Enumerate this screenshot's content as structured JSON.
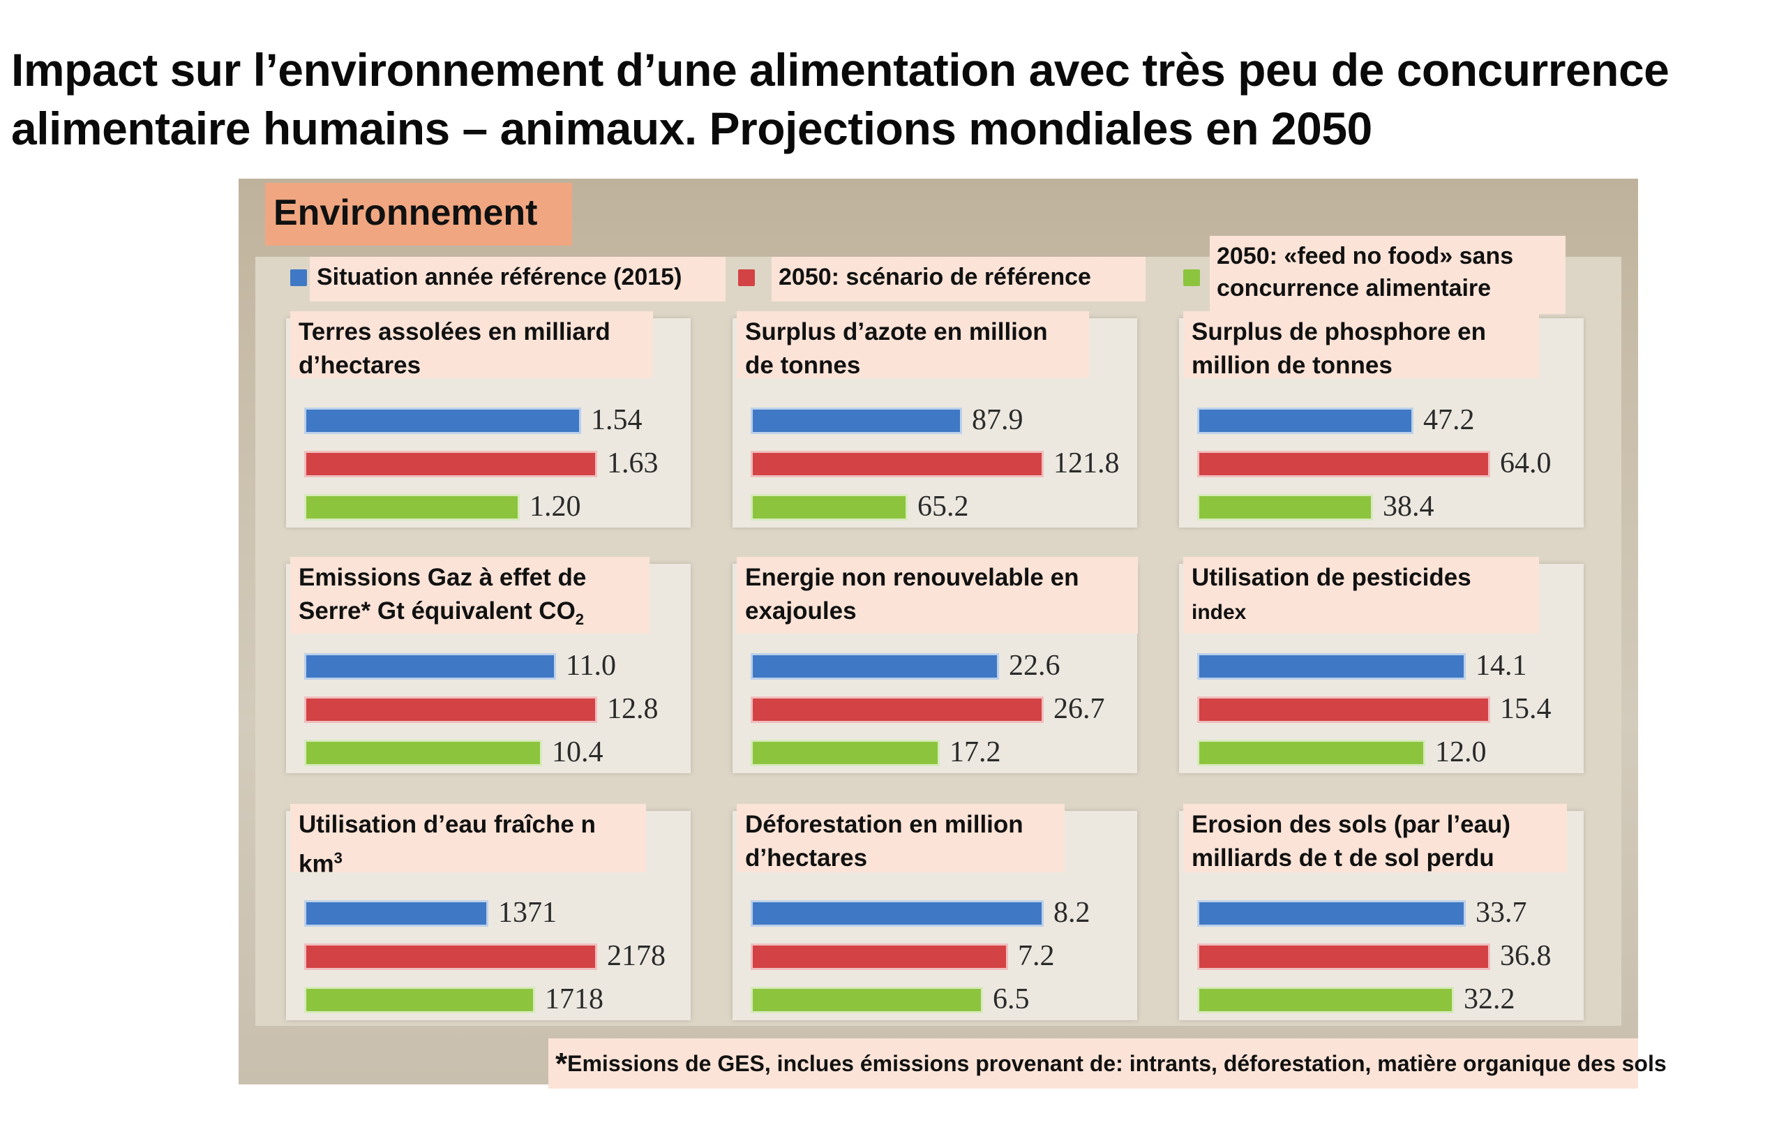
{
  "title": "Impact sur l’environnement d’une alimentation avec très peu de concurrence alimentaire humains – animaux. Projections mondiales en 2050",
  "section_label": "Environnement",
  "footnote": {
    "marker": "*",
    "text": "Emissions de GES, inclues émissions provenant de: intrants, déforestation, matière organique des sols"
  },
  "colors": {
    "ref2015": "#3f78c4",
    "ref2050": "#d34244",
    "feednofood": "#8cc43e"
  },
  "chart_data": {
    "type": "bar",
    "orientation": "horizontal",
    "title": "Environnement",
    "legend": {
      "placement": "top",
      "entries": [
        {
          "key": "ref2015",
          "label": "Situation année référence (2015)"
        },
        {
          "key": "ref2050",
          "label": "2050: scénario de référence"
        },
        {
          "key": "feednofood",
          "label": "2050: «feed no food» sans concurrence alimentaire"
        }
      ]
    },
    "series_names": [
      "Situation année référence (2015)",
      "2050: scénario de référence",
      "2050: «feed no food» sans concurrence alimentaire"
    ],
    "panels": [
      {
        "title": "Terres assolées en milliard d’hectares",
        "values": [
          1.54,
          1.63,
          1.2
        ],
        "labels": [
          "1.54",
          "1.63",
          "1.20"
        ]
      },
      {
        "title": "Surplus d’azote en million de tonnes",
        "values": [
          87.9,
          121.8,
          65.2
        ],
        "labels": [
          "87.9",
          "121.8",
          "65.2"
        ]
      },
      {
        "title": "Surplus de phosphore en million de tonnes",
        "values": [
          47.2,
          64.0,
          38.4
        ],
        "labels": [
          "47.2",
          "64.0",
          "38.4"
        ]
      },
      {
        "title": "Emissions Gaz à effet de Serre* Gt équivalent CO2",
        "title_main": "Emissions Gaz à effet de Serre* Gt équivalent CO",
        "title_sub": "2",
        "values": [
          11.0,
          12.8,
          10.4
        ],
        "labels": [
          "11.0",
          "12.8",
          "10.4"
        ]
      },
      {
        "title": "Energie non renouvelable en exajoules",
        "values": [
          22.6,
          26.7,
          17.2
        ],
        "labels": [
          "22.6",
          "26.7",
          "17.2"
        ]
      },
      {
        "title": "Utilisation de pesticides index",
        "title_main": "Utilisation de pesticides",
        "title_line2": "index",
        "values": [
          14.1,
          15.4,
          12.0
        ],
        "labels": [
          "14.1",
          "15.4",
          "12.0"
        ]
      },
      {
        "title": "Utilisation d’eau fraîche n km3",
        "title_main": "Utilisation d’eau fraîche n km",
        "title_sup": "3",
        "values": [
          1371,
          2178,
          1718
        ],
        "labels": [
          "1371",
          "2178",
          "1718"
        ]
      },
      {
        "title": "Déforestation en million d’hectares",
        "values": [
          8.2,
          7.2,
          6.5
        ],
        "labels": [
          "8.2",
          "7.2",
          "6.5"
        ]
      },
      {
        "title": "Erosion des sols (par l’eau) milliards de t de sol perdu",
        "values": [
          33.7,
          36.8,
          32.2
        ],
        "labels": [
          "33.7",
          "36.8",
          "32.2"
        ]
      }
    ]
  }
}
